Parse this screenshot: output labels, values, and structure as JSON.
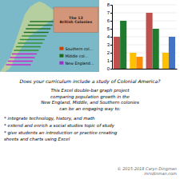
{
  "chart_data": [
    {
      "type": "map",
      "title": "The 13\nBritish Colonies",
      "colors": [
        "#1a6b1a",
        "#2d8c2d",
        "#cc22cc"
      ],
      "annotations": [
        {
          "text": "Southern col...",
          "color": "#cc4400"
        },
        {
          "text": "Middle col...",
          "color": "#1a6b1a"
        },
        {
          "text": "New England...",
          "color": "#9b30c8"
        }
      ]
    },
    {
      "type": "bar",
      "categories": [
        null,
        null,
        null,
        null
      ],
      "series": [
        {
          "colors": [
            "#c0504d",
            "#ffc000",
            "#c0504d",
            "#ffc000"
          ],
          "values": [
            4,
            2,
            7,
            2
          ]
        },
        {
          "colors": [
            "#1f7c2e",
            "#ff8c00",
            "#1f7c2e",
            "#4472c4"
          ],
          "values": [
            6,
            1.5,
            5,
            4
          ]
        }
      ],
      "ylim": [
        0,
        8
      ],
      "yticks": [
        0,
        1,
        2,
        3,
        4,
        5,
        6,
        7,
        8
      ],
      "grid": true,
      "tick_labels": "y"
    },
    {
      "type": "text",
      "title": "Does your curriculum include a study of Colonial America?",
      "annotations": [
        "This Excel double-bar graph project\ncomparing population growth in the\nNew England, Middle, and Southern colonies\ncan be an engaging way to:",
        "* integrate technology, history, and math",
        "* extend and enrich a social studies topic of study",
        "* give students an introduction or practice creating\nsheets and charts using Excel",
        "© 2015-2018 Caryn Dingman\nmrsdinman.com"
      ]
    }
  ]
}
